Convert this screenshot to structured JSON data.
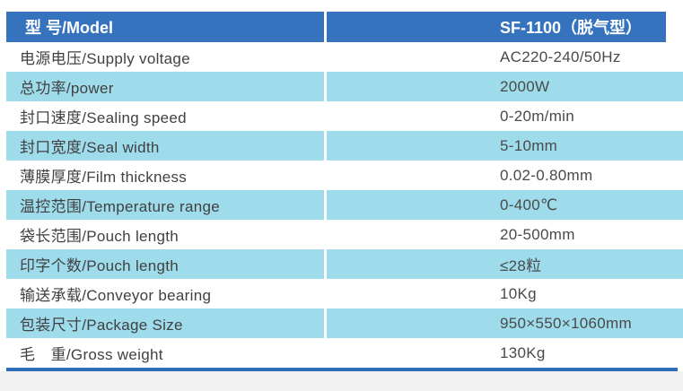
{
  "table": {
    "header": {
      "model_label": "型 号/Model",
      "model_value": "SF-1100（脱气型）"
    },
    "rows": [
      {
        "label": "电源电压/Supply voltage",
        "value": "AC220-240/50Hz"
      },
      {
        "label": "总功率/power",
        "value": "2000W"
      },
      {
        "label": "封口速度/Sealing speed",
        "value": "0-20m/min"
      },
      {
        "label": "封口宽度/Seal width",
        "value": "5-10mm"
      },
      {
        "label": "薄膜厚度/Film thickness",
        "value": "0.02-0.80mm"
      },
      {
        "label": "温控范围/Temperature range",
        "value": "0-400℃"
      },
      {
        "label": "袋长范围/Pouch length",
        "value": "20-500mm"
      },
      {
        "label": "印字个数/Pouch length",
        "value": "≤28粒"
      },
      {
        "label": "输送承载/Conveyor bearing",
        "value": "10Kg"
      },
      {
        "label": "包装尺寸/Package Size",
        "value": "950×550×1060mm"
      },
      {
        "label": "毛　重/Gross weight",
        "value": "130Kg"
      }
    ],
    "colors": {
      "header_bg": "#3673bf",
      "header_text": "#ffffff",
      "row_bg": "#ffffff",
      "row_alt_bg": "#9edbeb",
      "text": "#414141",
      "text_value": "#4a4a4a",
      "bottom_line": "#2f6cb8",
      "footer_bg": "#f1f1f1"
    }
  }
}
